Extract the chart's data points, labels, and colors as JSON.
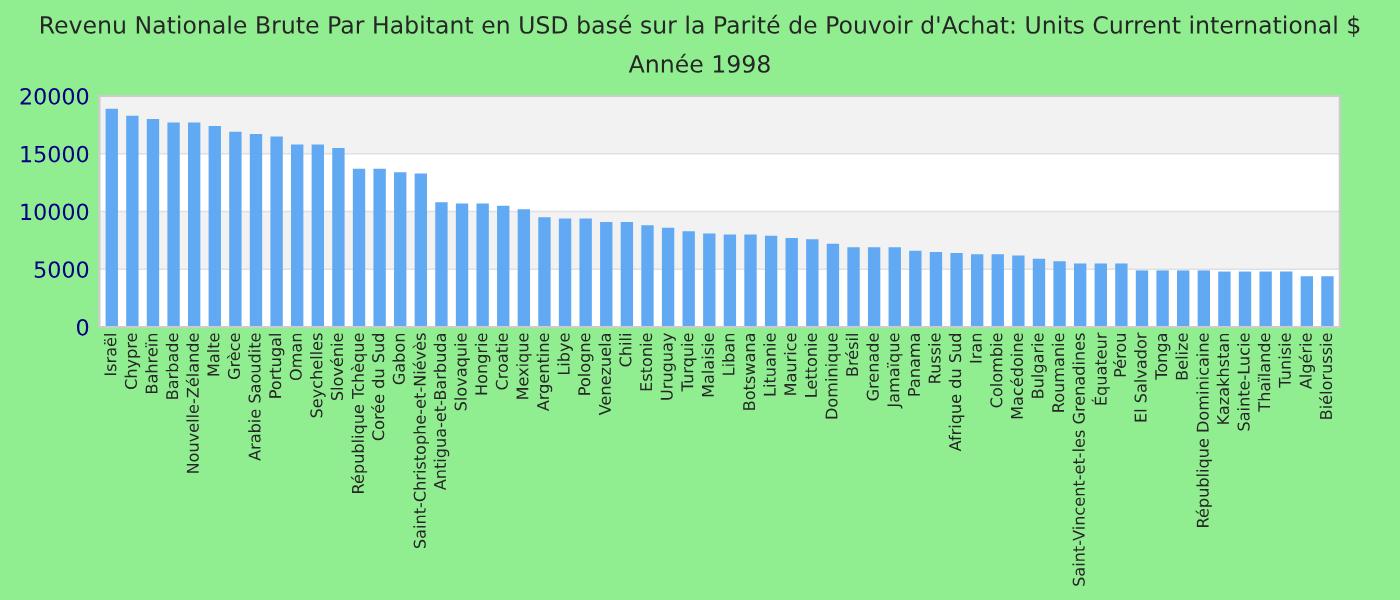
{
  "chart_data": {
    "type": "bar",
    "title": "Revenu Nationale Brute Par Habitant en USD basé sur la Parité de Pouvoir d'Achat: Units Current international $",
    "subtitle": "Année 1998",
    "categories": [
      "Israël",
      "Chypre",
      "Bahreïn",
      "Barbade",
      "Nouvelle-Zélande",
      "Malte",
      "Grèce",
      "Arabie Saoudite",
      "Portugal",
      "Oman",
      "Seychelles",
      "Slovénie",
      "République Tchèque",
      "Corée du Sud",
      "Gabon",
      "Saint-Christophe-et-Niévès",
      "Antigua-et-Barbuda",
      "Slovaquie",
      "Hongrie",
      "Croatie",
      "Mexique",
      "Argentine",
      "Libye",
      "Pologne",
      "Venezuela",
      "Chili",
      "Estonie",
      "Uruguay",
      "Turquie",
      "Malaisie",
      "Liban",
      "Botswana",
      "Lituanie",
      "Maurice",
      "Lettonie",
      "Dominique",
      "Brésil",
      "Grenade",
      "Jamaïque",
      "Panama",
      "Russie",
      "Afrique du Sud",
      "Iran",
      "Colombie",
      "Macédoine",
      "Bulgarie",
      "Roumanie",
      "Saint-Vincent-et-les Grenadines",
      "Équateur",
      "Pérou",
      "El Salvador",
      "Tonga",
      "Belize",
      "République Dominicaine",
      "Kazakhstan",
      "Sainte-Lucie",
      "Thaïlande",
      "Tunisie",
      "Algérie",
      "Biélorussie"
    ],
    "values": [
      18900,
      18300,
      18000,
      17700,
      17700,
      17400,
      16900,
      16700,
      16500,
      15800,
      15800,
      15500,
      13700,
      13700,
      13400,
      13300,
      10800,
      10700,
      10700,
      10500,
      10200,
      9500,
      9400,
      9400,
      9100,
      9100,
      8800,
      8600,
      8300,
      8100,
      8000,
      8000,
      7900,
      7700,
      7600,
      7200,
      6900,
      6900,
      6900,
      6600,
      6500,
      6400,
      6300,
      6300,
      6200,
      5900,
      5700,
      5500,
      5500,
      5500,
      4900,
      4900,
      4900,
      4900,
      4800,
      4800,
      4800,
      4800,
      4400,
      4400
    ],
    "color": "#61a9f3",
    "ylim": [
      0,
      20000
    ],
    "yticks": [
      0,
      5000,
      10000,
      15000,
      20000
    ],
    "grid": "y"
  }
}
